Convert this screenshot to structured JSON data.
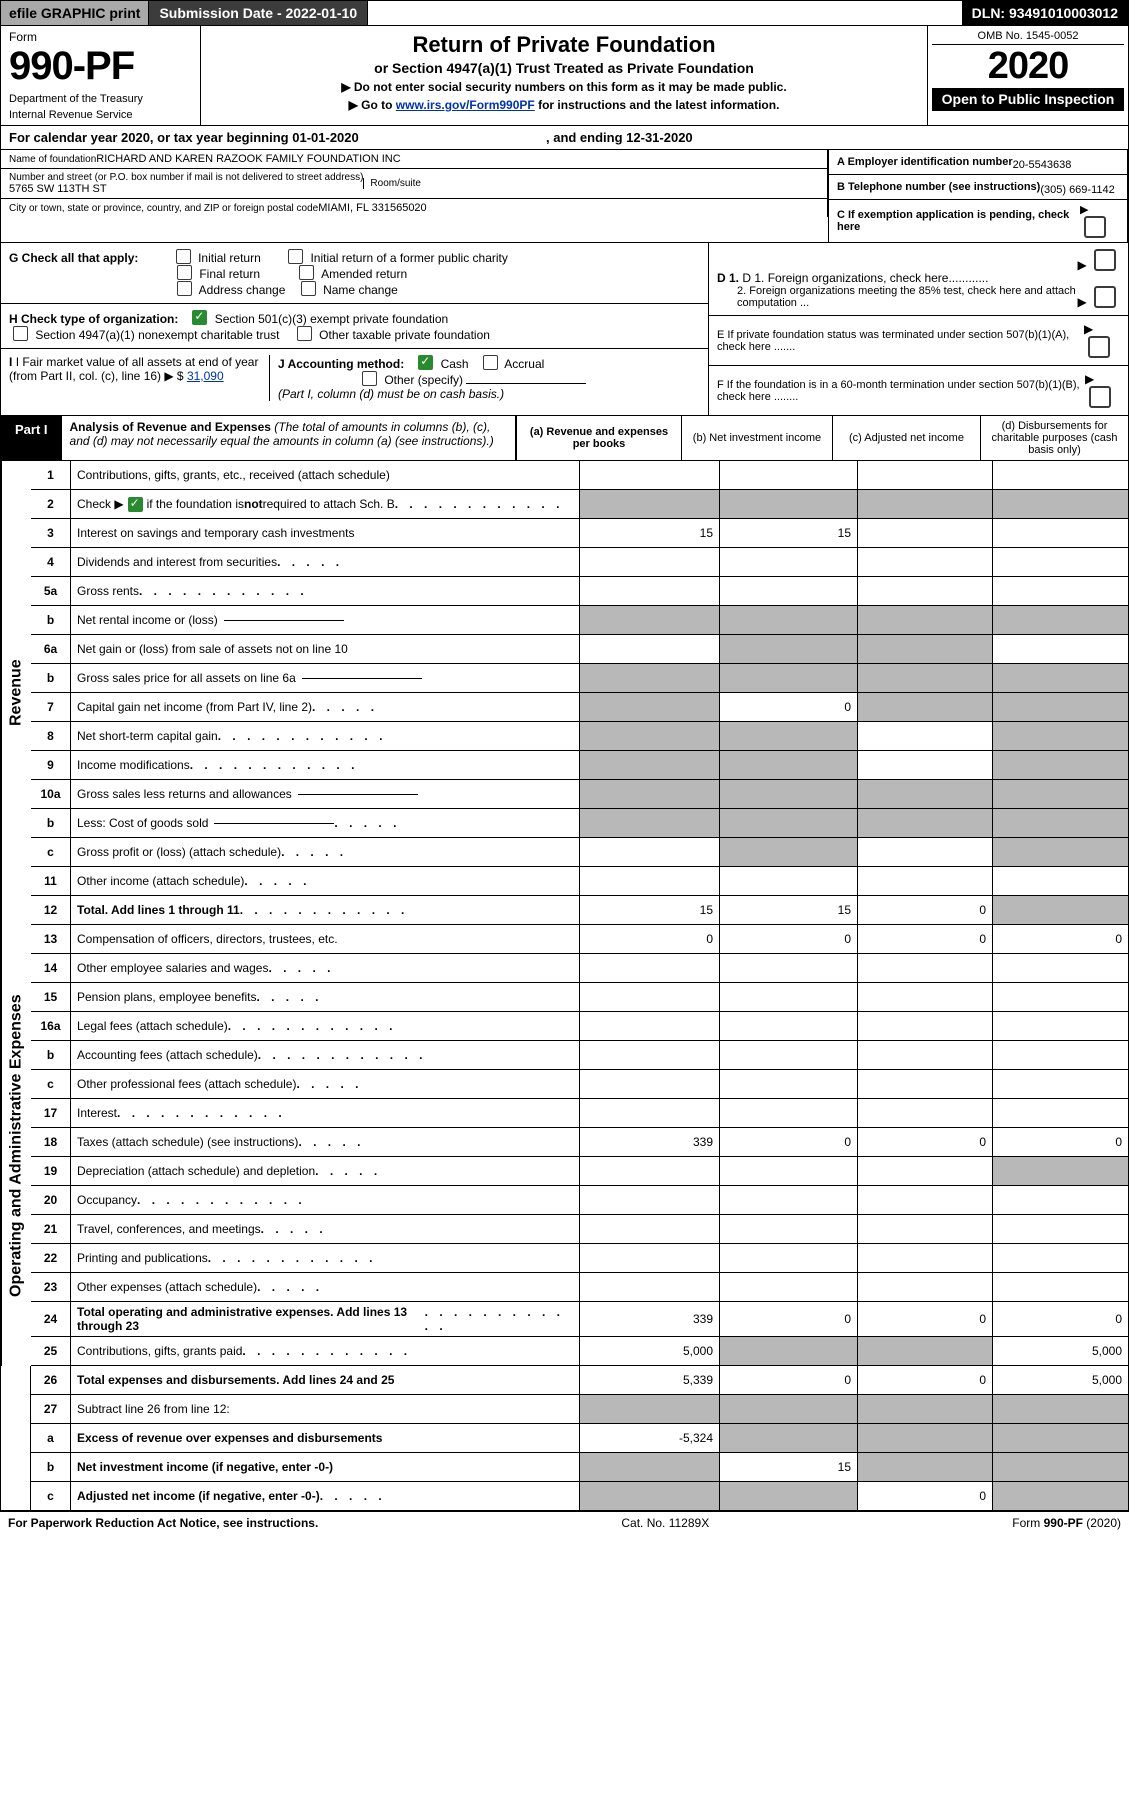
{
  "top_bar": {
    "efile": "efile GRAPHIC print",
    "submission": "Submission Date - 2022-01-10",
    "dln": "DLN: 93491010003012"
  },
  "header": {
    "form_word": "Form",
    "form_number": "990-PF",
    "dept": "Department of the Treasury",
    "irs": "Internal Revenue Service",
    "title": "Return of Private Foundation",
    "subtitle": "or Section 4947(a)(1) Trust Treated as Private Foundation",
    "instr1": "▶ Do not enter social security numbers on this form as it may be made public.",
    "instr2_prefix": "▶ Go to ",
    "instr2_link": "www.irs.gov/Form990PF",
    "instr2_suffix": " for instructions and the latest information.",
    "omb": "OMB No. 1545-0052",
    "year": "2020",
    "open_pub": "Open to Public Inspection"
  },
  "calendar": {
    "prefix": "For calendar year 2020, or tax year beginning ",
    "begin": "01-01-2020",
    "mid": " , and ending ",
    "end": "12-31-2020"
  },
  "entity": {
    "name_label": "Name of foundation",
    "name": "RICHARD AND KAREN RAZOOK FAMILY FOUNDATION INC",
    "addr_label": "Number and street (or P.O. box number if mail is not delivered to street address)",
    "addr": "5765 SW 113TH ST",
    "room_label": "Room/suite",
    "city_label": "City or town, state or province, country, and ZIP or foreign postal code",
    "city": "MIAMI, FL  331565020",
    "a_label": "A Employer identification number",
    "a_val": "20-5543638",
    "b_label": "B Telephone number (see instructions)",
    "b_val": "(305) 669-1142",
    "c_label": "C If exemption application is pending, check here"
  },
  "checks": {
    "g_label": "G Check all that apply:",
    "g_opts": [
      "Initial return",
      "Initial return of a former public charity",
      "Final return",
      "Amended return",
      "Address change",
      "Name change"
    ],
    "h_label": "H Check type of organization:",
    "h_opt1": "Section 501(c)(3) exempt private foundation",
    "h_opt2": "Section 4947(a)(1) nonexempt charitable trust",
    "h_opt3": "Other taxable private foundation",
    "i_label": "I Fair market value of all assets at end of year (from Part II, col. (c), line 16) ▶ $ ",
    "i_val": "31,090",
    "j_label": "J Accounting method:",
    "j_opts": [
      "Cash",
      "Accrual"
    ],
    "j_other": "Other (specify)",
    "j_note": "(Part I, column (d) must be on cash basis.)",
    "d1": "D 1. Foreign organizations, check here............",
    "d2": "2. Foreign organizations meeting the 85% test, check here and attach computation ...",
    "e": "E  If private foundation status was terminated under section 507(b)(1)(A), check here .......",
    "f": "F  If the foundation is in a 60-month termination under section 507(b)(1)(B), check here ........"
  },
  "part1": {
    "label": "Part I",
    "title": "Analysis of Revenue and Expenses",
    "note": " (The total of amounts in columns (b), (c), and (d) may not necessarily equal the amounts in column (a) (see instructions).)",
    "col_a": "(a)  Revenue and expenses per books",
    "col_b": "(b)  Net investment income",
    "col_c": "(c)  Adjusted net income",
    "col_d": "(d)  Disbursements for charitable purposes (cash basis only)"
  },
  "side": {
    "rev": "Revenue",
    "exp": "Operating and Administrative Expenses"
  },
  "rows": [
    {
      "no": "1",
      "desc": "Contributions, gifts, grants, etc., received (attach schedule)",
      "a": "",
      "b": "",
      "c": "",
      "d": ""
    },
    {
      "no": "2",
      "desc": "Check ▶ ☑ if the foundation is not required to attach Sch. B",
      "a": "",
      "b": "",
      "c": "",
      "d": "",
      "checkmark": true,
      "gray_a": true,
      "gray_b": true,
      "gray_c": true,
      "gray_d": true
    },
    {
      "no": "3",
      "desc": "Interest on savings and temporary cash investments",
      "a": "15",
      "b": "15",
      "c": "",
      "d": ""
    },
    {
      "no": "4",
      "desc": "Dividends and interest from securities",
      "a": "",
      "b": "",
      "c": "",
      "d": "",
      "dots": "short"
    },
    {
      "no": "5a",
      "desc": "Gross rents",
      "a": "",
      "b": "",
      "c": "",
      "d": "",
      "dots": "long"
    },
    {
      "no": "b",
      "desc": "Net rental income or (loss)",
      "a": "",
      "b": "",
      "c": "",
      "d": "",
      "gray_a": true,
      "gray_b": true,
      "gray_c": true,
      "gray_d": true,
      "inline": true
    },
    {
      "no": "6a",
      "desc": "Net gain or (loss) from sale of assets not on line 10",
      "a": "",
      "b": "",
      "c": "",
      "d": "",
      "gray_b": true,
      "gray_c": true
    },
    {
      "no": "b",
      "desc": "Gross sales price for all assets on line 6a",
      "a": "",
      "b": "",
      "c": "",
      "d": "",
      "gray_a": true,
      "gray_b": true,
      "gray_c": true,
      "gray_d": true,
      "inline": true
    },
    {
      "no": "7",
      "desc": "Capital gain net income (from Part IV, line 2)",
      "a": "",
      "b": "0",
      "c": "",
      "d": "",
      "gray_a": true,
      "gray_c": true,
      "gray_d": true,
      "dots": "short"
    },
    {
      "no": "8",
      "desc": "Net short-term capital gain",
      "a": "",
      "b": "",
      "c": "",
      "d": "",
      "gray_a": true,
      "gray_b": true,
      "gray_d": true,
      "dots": "long"
    },
    {
      "no": "9",
      "desc": "Income modifications",
      "a": "",
      "b": "",
      "c": "",
      "d": "",
      "gray_a": true,
      "gray_b": true,
      "gray_d": true,
      "dots": "long"
    },
    {
      "no": "10a",
      "desc": "Gross sales less returns and allowances",
      "a": "",
      "b": "",
      "c": "",
      "d": "",
      "gray_a": true,
      "gray_b": true,
      "gray_c": true,
      "gray_d": true,
      "inline": true
    },
    {
      "no": "b",
      "desc": "Less: Cost of goods sold",
      "a": "",
      "b": "",
      "c": "",
      "d": "",
      "gray_a": true,
      "gray_b": true,
      "gray_c": true,
      "gray_d": true,
      "inline": true,
      "dots": "short"
    },
    {
      "no": "c",
      "desc": "Gross profit or (loss) (attach schedule)",
      "a": "",
      "b": "",
      "c": "",
      "d": "",
      "gray_b": true,
      "gray_d": true,
      "dots": "short"
    },
    {
      "no": "11",
      "desc": "Other income (attach schedule)",
      "a": "",
      "b": "",
      "c": "",
      "d": "",
      "dots": "short"
    },
    {
      "no": "12",
      "desc": "Total. Add lines 1 through 11",
      "a": "15",
      "b": "15",
      "c": "0",
      "d": "",
      "bold": true,
      "gray_d": true,
      "dots": "long"
    },
    {
      "no": "13",
      "desc": "Compensation of officers, directors, trustees, etc.",
      "a": "0",
      "b": "0",
      "c": "0",
      "d": "0"
    },
    {
      "no": "14",
      "desc": "Other employee salaries and wages",
      "a": "",
      "b": "",
      "c": "",
      "d": "",
      "dots": "short"
    },
    {
      "no": "15",
      "desc": "Pension plans, employee benefits",
      "a": "",
      "b": "",
      "c": "",
      "d": "",
      "dots": "short"
    },
    {
      "no": "16a",
      "desc": "Legal fees (attach schedule)",
      "a": "",
      "b": "",
      "c": "",
      "d": "",
      "dots": "long"
    },
    {
      "no": "b",
      "desc": "Accounting fees (attach schedule)",
      "a": "",
      "b": "",
      "c": "",
      "d": "",
      "dots": "long"
    },
    {
      "no": "c",
      "desc": "Other professional fees (attach schedule)",
      "a": "",
      "b": "",
      "c": "",
      "d": "",
      "dots": "short"
    },
    {
      "no": "17",
      "desc": "Interest",
      "a": "",
      "b": "",
      "c": "",
      "d": "",
      "dots": "long"
    },
    {
      "no": "18",
      "desc": "Taxes (attach schedule) (see instructions)",
      "a": "339",
      "b": "0",
      "c": "0",
      "d": "0",
      "dots": "short"
    },
    {
      "no": "19",
      "desc": "Depreciation (attach schedule) and depletion",
      "a": "",
      "b": "",
      "c": "",
      "d": "",
      "gray_d": true,
      "dots": "short"
    },
    {
      "no": "20",
      "desc": "Occupancy",
      "a": "",
      "b": "",
      "c": "",
      "d": "",
      "dots": "long"
    },
    {
      "no": "21",
      "desc": "Travel, conferences, and meetings",
      "a": "",
      "b": "",
      "c": "",
      "d": "",
      "dots": "short"
    },
    {
      "no": "22",
      "desc": "Printing and publications",
      "a": "",
      "b": "",
      "c": "",
      "d": "",
      "dots": "long"
    },
    {
      "no": "23",
      "desc": "Other expenses (attach schedule)",
      "a": "",
      "b": "",
      "c": "",
      "d": "",
      "dots": "short"
    },
    {
      "no": "24",
      "desc": "Total operating and administrative expenses. Add lines 13 through 23",
      "a": "339",
      "b": "0",
      "c": "0",
      "d": "0",
      "bold": true,
      "dots": "long"
    },
    {
      "no": "25",
      "desc": "Contributions, gifts, grants paid",
      "a": "5,000",
      "b": "",
      "c": "",
      "d": "5,000",
      "gray_b": true,
      "gray_c": true,
      "dots": "long"
    },
    {
      "no": "26",
      "desc": "Total expenses and disbursements. Add lines 24 and 25",
      "a": "5,339",
      "b": "0",
      "c": "0",
      "d": "5,000",
      "bold": true
    },
    {
      "no": "27",
      "desc": "Subtract line 26 from line 12:",
      "a": "",
      "b": "",
      "c": "",
      "d": "",
      "gray_a": true,
      "gray_b": true,
      "gray_c": true,
      "gray_d": true
    },
    {
      "no": "a",
      "desc": "Excess of revenue over expenses and disbursements",
      "a": "-5,324",
      "b": "",
      "c": "",
      "d": "",
      "bold": true,
      "gray_b": true,
      "gray_c": true,
      "gray_d": true
    },
    {
      "no": "b",
      "desc": "Net investment income (if negative, enter -0-)",
      "a": "",
      "b": "15",
      "c": "",
      "d": "",
      "bold": true,
      "gray_a": true,
      "gray_c": true,
      "gray_d": true
    },
    {
      "no": "c",
      "desc": "Adjusted net income (if negative, enter -0-)",
      "a": "",
      "b": "",
      "c": "0",
      "d": "",
      "bold": true,
      "gray_a": true,
      "gray_b": true,
      "gray_d": true,
      "dots": "short"
    }
  ],
  "footer": {
    "left": "For Paperwork Reduction Act Notice, see instructions.",
    "mid": "Cat. No. 11289X",
    "right": "Form 990-PF (2020)"
  }
}
